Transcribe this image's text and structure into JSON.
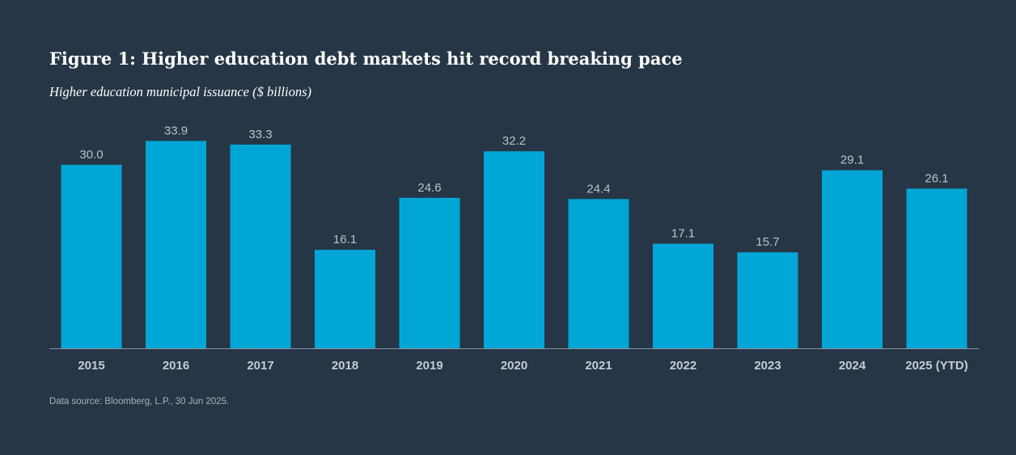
{
  "colors": {
    "background": "#263646",
    "bar": "#00a6d6",
    "axis": "#8a96a3"
  },
  "figure": {
    "title": "Figure 1: Higher education debt markets hit record breaking pace",
    "subtitle": "Higher education municipal issuance ($ billions)",
    "source": "Data source: Bloomberg, L.P., 30 Jun 2025."
  },
  "chart_data": {
    "type": "bar",
    "title": "Figure 1: Higher education debt markets hit record breaking pace",
    "subtitle": "Higher education municipal issuance ($ billions)",
    "xlabel": "",
    "ylabel": "",
    "categories": [
      "2015",
      "2016",
      "2017",
      "2018",
      "2019",
      "2020",
      "2021",
      "2022",
      "2023",
      "2024",
      "2025 (YTD)"
    ],
    "values": [
      30.0,
      33.9,
      33.3,
      16.1,
      24.6,
      32.2,
      24.4,
      17.1,
      15.7,
      29.1,
      26.1
    ],
    "value_labels": [
      "30.0",
      "33.9",
      "33.3",
      "16.1",
      "24.6",
      "32.2",
      "24.4",
      "17.1",
      "15.7",
      "29.1",
      "26.1"
    ],
    "ylim": [
      0,
      34
    ],
    "grid": false,
    "legend": "none",
    "data_labels": true
  }
}
